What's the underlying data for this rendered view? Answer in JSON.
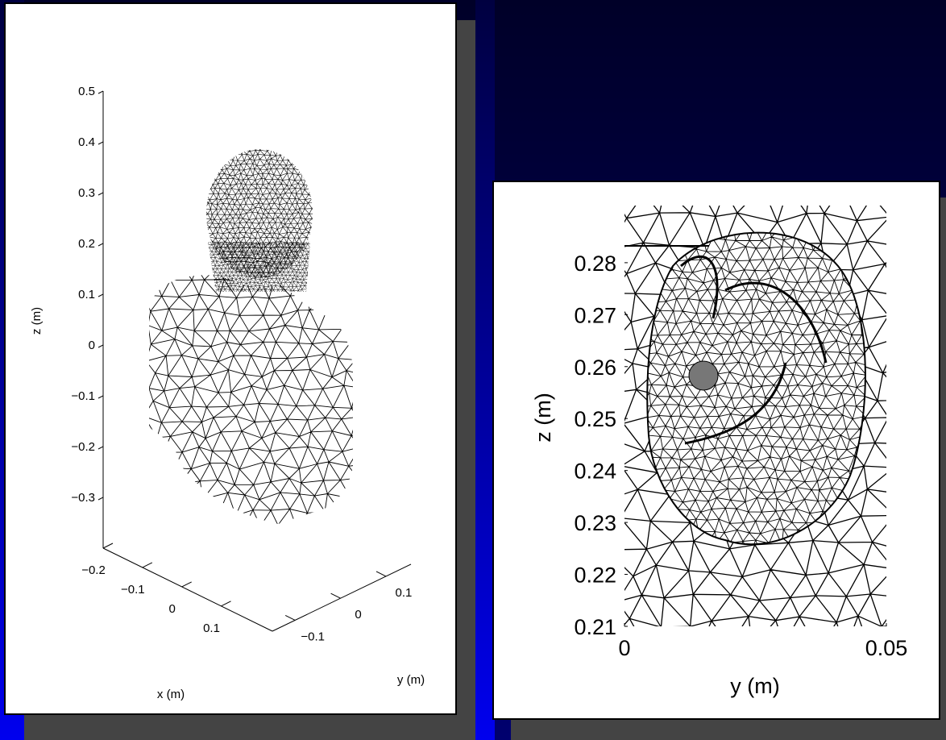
{
  "chart_data": [
    {
      "type": "mesh3d",
      "xlabel": "x (m)",
      "ylabel": "y (m)",
      "zlabel": "z (m)",
      "xlim": [
        -0.2,
        0.23
      ],
      "ylim": [
        -0.15,
        0.155
      ],
      "zlim": [
        -0.4,
        0.5
      ],
      "xticks": [
        {
          "value": -0.2,
          "label": "−0.2"
        },
        {
          "value": -0.1,
          "label": "−0.1"
        },
        0,
        0.1
      ],
      "yticks": [
        {
          "value": -0.1,
          "label": "−0.1"
        },
        0,
        0.1
      ],
      "zticks": [
        0.5,
        0.4,
        0.3,
        0.2,
        0.1,
        0,
        {
          "value": -0.1,
          "label": "−0.1"
        },
        {
          "value": -0.2,
          "label": "−0.2"
        },
        {
          "value": -0.3,
          "label": "−0.3"
        }
      ]
    },
    {
      "type": "mesh",
      "xlabel": "y (m)",
      "ylabel": "z (m)",
      "xlim": [
        0,
        0.05
      ],
      "ylim": [
        0.21,
        0.291
      ],
      "xticks": [
        0,
        0.05
      ],
      "yticks": [
        0.21,
        0.22,
        0.23,
        0.24,
        0.25,
        0.26,
        0.27,
        0.28
      ]
    }
  ]
}
